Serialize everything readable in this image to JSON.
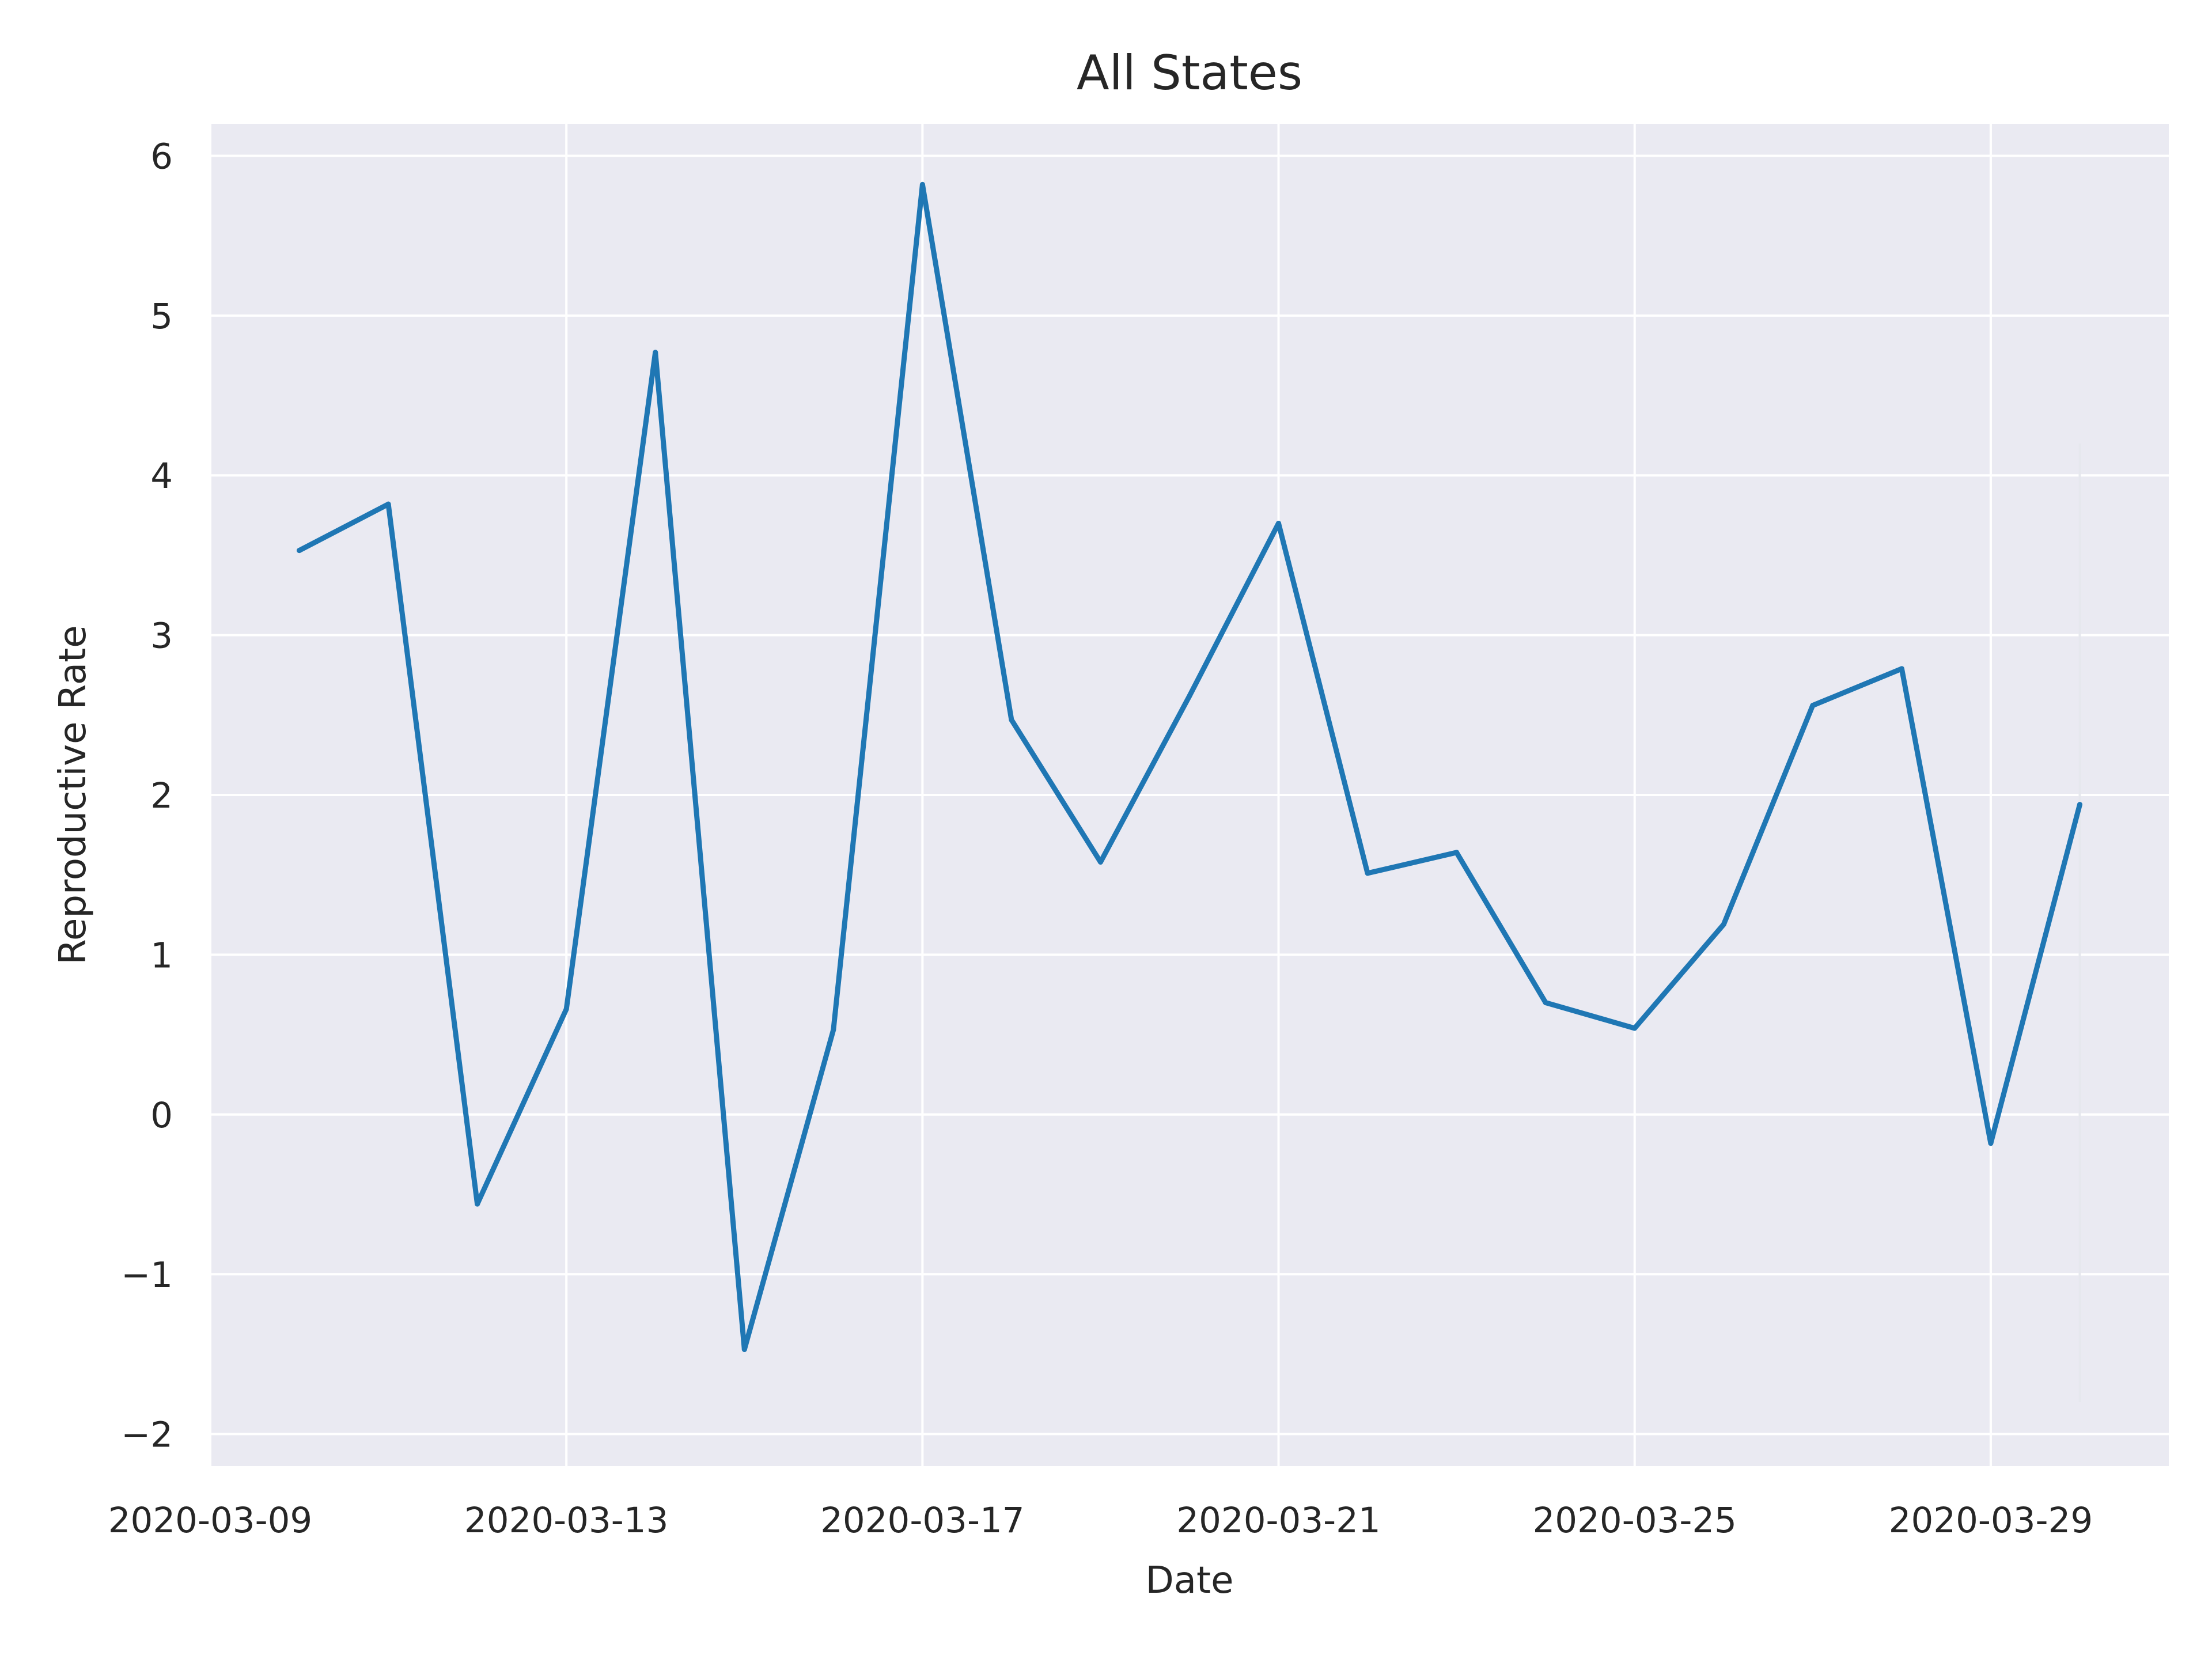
{
  "colors": {
    "plot_background": "#EAEAF2",
    "grid": "#FFFFFF",
    "line": "#1F77B4",
    "text": "#262626",
    "error_bar": "#E6E8EE"
  },
  "chart_data": {
    "type": "line",
    "title": "All States",
    "xlabel": "Date",
    "ylabel": "Reproductive Rate",
    "grid": true,
    "xlim": [
      "2020-03-09",
      "2020-03-31"
    ],
    "ylim": [
      -2.2,
      6.2
    ],
    "x_ticks": [
      "2020-03-09",
      "2020-03-13",
      "2020-03-17",
      "2020-03-21",
      "2020-03-25",
      "2020-03-29"
    ],
    "y_ticks": [
      -2,
      -1,
      0,
      1,
      2,
      3,
      4,
      5,
      6
    ],
    "y_tick_labels": [
      "−2",
      "−1",
      "0",
      "1",
      "2",
      "3",
      "4",
      "5",
      "6"
    ],
    "series": [
      {
        "x": [
          "2020-03-10",
          "2020-03-11",
          "2020-03-12",
          "2020-03-13",
          "2020-03-14",
          "2020-03-15",
          "2020-03-16",
          "2020-03-17",
          "2020-03-18",
          "2020-03-19",
          "2020-03-20",
          "2020-03-21",
          "2020-03-22",
          "2020-03-23",
          "2020-03-24",
          "2020-03-25",
          "2020-03-26",
          "2020-03-27",
          "2020-03-28",
          "2020-03-29",
          "2020-03-30"
        ],
        "values": [
          3.53,
          3.82,
          -0.56,
          0.66,
          4.77,
          -1.47,
          0.53,
          5.82,
          2.47,
          1.58,
          2.62,
          3.7,
          1.51,
          1.64,
          0.7,
          0.54,
          1.19,
          2.56,
          2.79,
          -0.18,
          1.94
        ]
      }
    ],
    "error_bar": {
      "x": "2020-03-30",
      "low": -1.8,
      "high": 4.2
    }
  }
}
